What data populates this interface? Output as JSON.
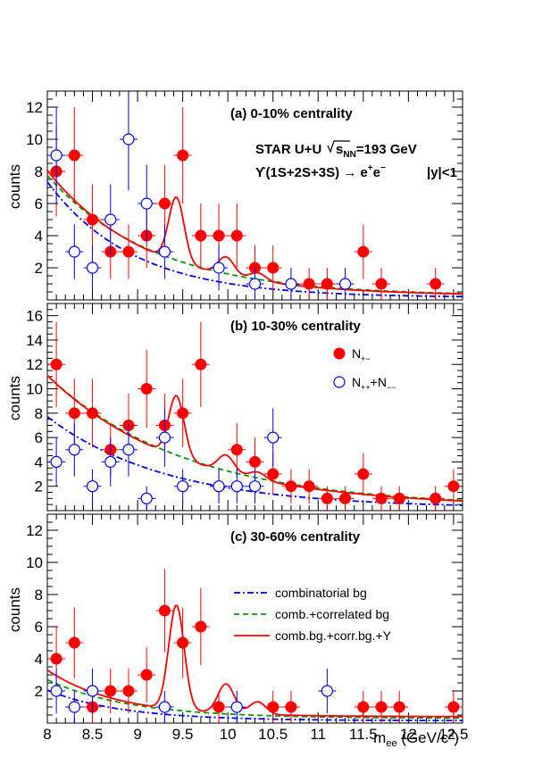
{
  "chart_data": [
    {
      "type": "scatter",
      "panel": "a",
      "title": "(a)  0-10% centrality",
      "ylabel": "counts",
      "xlim": [
        8,
        12.6
      ],
      "ylim": [
        0,
        13
      ],
      "yticks": [
        2,
        4,
        6,
        8,
        10,
        12
      ],
      "series": [
        {
          "name": "N+-",
          "style": "filled",
          "color": "#ff0000",
          "x": [
            8.1,
            8.3,
            8.5,
            8.7,
            8.9,
            9.1,
            9.3,
            9.5,
            9.7,
            9.9,
            10.1,
            10.3,
            10.5,
            10.9,
            11.1,
            11.5,
            11.7,
            12.3
          ],
          "y": [
            8,
            9,
            5,
            3,
            3,
            4,
            6,
            9,
            4,
            4,
            4,
            2,
            2,
            1,
            1,
            3,
            1,
            1
          ],
          "err": [
            2.8,
            3.0,
            2.2,
            1.7,
            1.7,
            2.0,
            2.4,
            3.0,
            2.0,
            2.0,
            2.0,
            1.4,
            1.4,
            1.0,
            1.0,
            1.7,
            1.0,
            1.0
          ]
        },
        {
          "name": "N+++N--",
          "style": "open",
          "color": "#0000ff",
          "x": [
            8.1,
            8.3,
            8.5,
            8.7,
            8.9,
            9.1,
            9.3,
            9.9,
            10.3,
            10.7,
            11.3
          ],
          "y": [
            9,
            3,
            2,
            5,
            10,
            6,
            3,
            2,
            1,
            1,
            1
          ],
          "err": [
            3.0,
            1.7,
            1.4,
            2.2,
            3.2,
            2.4,
            1.7,
            1.4,
            1.0,
            1.0,
            1.0
          ]
        }
      ],
      "curves": [
        {
          "name": "combinatorial bg",
          "color": "#0000ff",
          "style": "dashdot",
          "A": 7.2,
          "k": 1.05,
          "c": 0.15,
          "sig": 0
        },
        {
          "name": "comb.+correlated bg",
          "color": "#009900",
          "style": "dashed",
          "A": 7.5,
          "k": 0.85,
          "c": 0.25,
          "sig": 0
        },
        {
          "name": "comb.bg.+corr.bg.+Υ",
          "color": "#ff0000",
          "style": "solid",
          "A": 7.8,
          "k": 0.9,
          "c": 0.25,
          "sig": 4.0
        }
      ]
    },
    {
      "type": "scatter",
      "panel": "b",
      "title": "(b) 10-30% centrality",
      "ylabel": "counts",
      "xlim": [
        8,
        12.6
      ],
      "ylim": [
        0,
        17
      ],
      "yticks": [
        2,
        4,
        6,
        8,
        10,
        12,
        14,
        16
      ],
      "series": [
        {
          "name": "N+-",
          "style": "filled",
          "color": "#ff0000",
          "x": [
            8.1,
            8.3,
            8.5,
            8.7,
            8.9,
            9.1,
            9.3,
            9.5,
            9.7,
            9.9,
            10.1,
            10.3,
            10.5,
            10.7,
            10.9,
            11.1,
            11.3,
            11.5,
            11.7,
            11.9,
            12.3,
            12.5
          ],
          "y": [
            12,
            8,
            8,
            5,
            7,
            10,
            7,
            8,
            12,
            2,
            5,
            4,
            3,
            2,
            2,
            1,
            1,
            3,
            1,
            1,
            1,
            2
          ],
          "err": [
            3.5,
            2.8,
            2.8,
            2.2,
            2.6,
            3.2,
            2.6,
            2.8,
            3.5,
            1.4,
            2.2,
            2.0,
            1.7,
            1.4,
            1.4,
            1.0,
            1.0,
            1.7,
            1.0,
            1.0,
            1.0,
            1.4
          ]
        },
        {
          "name": "N+++N--",
          "style": "open",
          "color": "#0000ff",
          "x": [
            8.1,
            8.3,
            8.5,
            8.7,
            8.9,
            9.1,
            9.3,
            9.5,
            9.9,
            10.1,
            10.3,
            10.5
          ],
          "y": [
            4,
            5,
            2,
            4,
            5,
            1,
            6,
            2,
            2,
            2,
            2,
            6
          ],
          "err": [
            2.0,
            2.2,
            1.4,
            2.0,
            2.2,
            1.0,
            2.4,
            1.4,
            1.4,
            1.4,
            1.4,
            2.4
          ]
        }
      ],
      "curves": [
        {
          "name": "combinatorial bg",
          "color": "#0000ff",
          "style": "dashdot",
          "A": 7.5,
          "k": 0.75,
          "c": 0.2,
          "sig": 0
        },
        {
          "name": "comb.+correlated bg",
          "color": "#009900",
          "style": "dashed",
          "A": 10.8,
          "k": 0.65,
          "c": 0.3,
          "sig": 0
        },
        {
          "name": "comb.bg.+corr.bg.+Υ",
          "color": "#ff0000",
          "style": "solid",
          "A": 10.8,
          "k": 0.67,
          "c": 0.3,
          "sig": 5.0
        }
      ],
      "legend": [
        {
          "marker": "filled",
          "color": "#ff0000",
          "label": "N",
          "sub": "+−",
          "extra": ""
        },
        {
          "marker": "open",
          "color": "#0000ff",
          "label": "N",
          "sub": "++",
          "extra": "+N",
          "sub2": "−−"
        }
      ]
    },
    {
      "type": "scatter",
      "panel": "c",
      "title": "(c) 30-60% centrality",
      "ylabel": "counts",
      "xlabel": "m",
      "xlabel_sub": "ee",
      "xlabel_unit": " (GeV/c",
      "xlabel_sup": "2",
      "xlabel_end": ")",
      "xlim": [
        8,
        12.6
      ],
      "ylim": [
        0,
        13
      ],
      "yticks": [
        2,
        4,
        6,
        8,
        10,
        12
      ],
      "xticks": [
        8,
        8.5,
        9,
        9.5,
        10,
        10.5,
        11,
        11.5,
        12,
        12.5
      ],
      "xtick_labels": [
        "8",
        "8.5",
        "9",
        "9.5",
        "10",
        "10.5",
        "11",
        "11.5",
        "12",
        "12.5"
      ],
      "series": [
        {
          "name": "N+-",
          "style": "filled",
          "color": "#ff0000",
          "x": [
            8.1,
            8.3,
            8.5,
            8.7,
            8.9,
            9.1,
            9.3,
            9.5,
            9.7,
            9.9,
            10.5,
            10.7,
            11.5,
            11.7,
            11.9,
            12.5
          ],
          "y": [
            4,
            5,
            1,
            2,
            2,
            3,
            7,
            5,
            6,
            1,
            1,
            1,
            1,
            1,
            1,
            1
          ],
          "err": [
            2.0,
            2.2,
            1.0,
            1.4,
            1.4,
            1.7,
            2.6,
            2.2,
            2.4,
            1.0,
            1.0,
            1.0,
            1.0,
            1.0,
            1.0,
            1.0
          ]
        },
        {
          "name": "N+++N--",
          "style": "open",
          "color": "#0000ff",
          "x": [
            8.1,
            8.3,
            8.5,
            9.3,
            10.1,
            11.1
          ],
          "y": [
            2,
            1,
            2,
            1,
            1,
            2
          ],
          "err": [
            1.4,
            1.0,
            1.4,
            1.0,
            1.0,
            1.4
          ]
        }
      ],
      "curves": [
        {
          "name": "combinatorial bg",
          "color": "#0000ff",
          "style": "dashdot",
          "A": 1.9,
          "k": 1.2,
          "c": 0.15,
          "sig": 0
        },
        {
          "name": "comb.+correlated bg",
          "color": "#009900",
          "style": "dashed",
          "A": 2.4,
          "k": 1.1,
          "c": 0.3,
          "sig": 0
        },
        {
          "name": "comb.bg.+corr.bg.+Υ",
          "color": "#ff0000",
          "style": "solid",
          "A": 2.9,
          "k": 1.3,
          "c": 0.4,
          "sig": 6.5
        }
      ],
      "legend": [
        {
          "style": "dashdot",
          "color": "#0000ff",
          "label": "combinatorial bg"
        },
        {
          "style": "dashed",
          "color": "#009900",
          "label": "comb.+correlated bg"
        },
        {
          "style": "solid",
          "color": "#ff0000",
          "label": "comb.bg.+corr.bg.+Υ"
        }
      ]
    }
  ],
  "annotations": {
    "experiment_prefix": "STAR U+U  ",
    "sqrt_s": "s",
    "sqrt_s_sub": "NN",
    "energy": "=193 GeV",
    "decay": "ϒ(1S+2S+3S) → e",
    "decay_sup1": "+",
    "decay_e": "e",
    "decay_sup2": "−",
    "rapidity": "|y|<1"
  }
}
